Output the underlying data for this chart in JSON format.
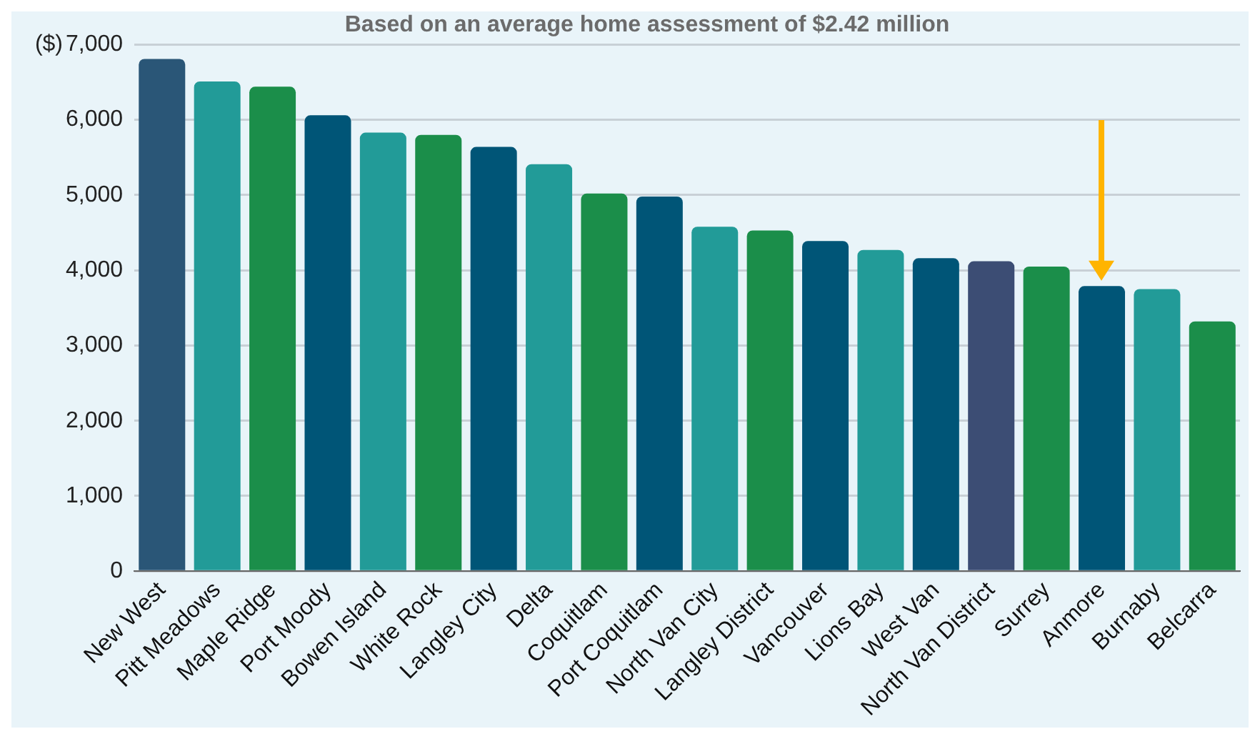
{
  "chart_data": {
    "type": "bar",
    "subtitle": "Based on an average home assessment of $2.42 million",
    "ylabel": "($)",
    "categories": [
      "New West",
      "Pitt Meadows",
      "Maple Ridge",
      "Port Moody",
      "Bowen Island",
      "White Rock",
      "Langley City",
      "Delta",
      "Coquitlam",
      "Port Coquitlam",
      "North Van City",
      "Langley District",
      "Vancouver",
      "Lions Bay",
      "West Van",
      "North Van District",
      "Surrey",
      "Anmore",
      "Burnaby",
      "Belcarra"
    ],
    "values": [
      6810,
      6510,
      6440,
      6060,
      5830,
      5800,
      5640,
      5410,
      5020,
      4980,
      4580,
      4530,
      4390,
      4270,
      4160,
      4120,
      4050,
      3790,
      3750,
      3320
    ],
    "colors": [
      "#2a5677",
      "#229b98",
      "#1b8e4a",
      "#005577",
      "#229b98",
      "#1b8e4a",
      "#005577",
      "#229b98",
      "#1b8e4a",
      "#005577",
      "#229b98",
      "#1b8e4a",
      "#005577",
      "#229b98",
      "#005577",
      "#3c4d74",
      "#1b8e4a",
      "#005577",
      "#229b98",
      "#1b8e4a"
    ],
    "ylim": [
      0,
      7000
    ],
    "yticks": [
      0,
      {
        "value": 1000,
        "label": "1,000"
      },
      {
        "value": 2000,
        "label": "2,000"
      },
      {
        "value": 3000,
        "label": "3,000"
      },
      {
        "value": 4000,
        "label": "4,000"
      },
      {
        "value": 5000,
        "label": "5,000"
      },
      {
        "value": 6000,
        "label": "6,000"
      },
      {
        "value": 7000,
        "label": "7,000"
      }
    ],
    "grid": "y"
  }
}
